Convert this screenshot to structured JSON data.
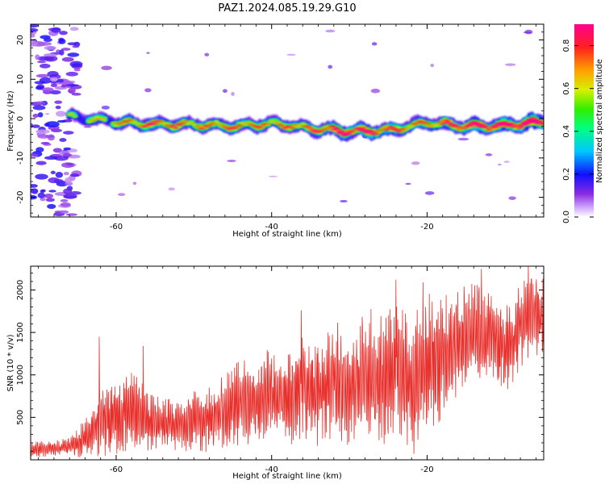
{
  "title": "PAZ1.2024.085.19.29.G10",
  "chart_data": [
    {
      "type": "heatmap",
      "xlabel": "Height of straight line (km)",
      "ylabel": "Frequency (Hz)",
      "xlim": [
        -71,
        -5
      ],
      "ylim": [
        -25,
        24
      ],
      "xticks": [
        -60,
        -40,
        -20
      ],
      "yticks": [
        -20,
        -10,
        0,
        10,
        20
      ],
      "colorbar": {
        "label": "Normalized spectral amplitude",
        "range": [
          0,
          0.9
        ],
        "ticks": [
          0.0,
          0.2,
          0.4,
          0.6,
          0.8
        ],
        "colormap": "rainbow (white-purple-blue-cyan-green-yellow-red-magenta)"
      },
      "ridge": {
        "description": "main spectral ridge",
        "x": [
          -66,
          -60,
          -55,
          -50,
          -45,
          -40,
          -35,
          -30,
          -25,
          -20,
          -15,
          -10,
          -5
        ],
        "frequency": [
          0.5,
          -0.8,
          -1.5,
          -1.5,
          -2.0,
          -1.2,
          -2.5,
          -3.2,
          -3.0,
          -1.0,
          -2.0,
          -1.8,
          -0.8
        ],
        "amplitude": [
          0.35,
          0.45,
          0.6,
          0.5,
          0.55,
          0.5,
          0.55,
          0.75,
          0.6,
          0.5,
          0.7,
          0.75,
          0.85
        ]
      },
      "noise_region": {
        "x": [
          -71,
          -65
        ],
        "frequency": [
          -25,
          24
        ],
        "amplitude": [
          0.05,
          0.2
        ]
      }
    },
    {
      "type": "line",
      "xlabel": "Height of straight line (km)",
      "ylabel": "SNR (10 * v/v)",
      "xlim": [
        -71,
        -5
      ],
      "ylim": [
        0,
        2280
      ],
      "xticks": [
        -60,
        -40,
        -20
      ],
      "yticks": [
        500,
        1000,
        1500,
        2000
      ],
      "color": "#e8312d",
      "envelope": {
        "x": [
          -71,
          -68,
          -66,
          -64,
          -62,
          -60,
          -58,
          -56,
          -54,
          -52,
          -50,
          -48,
          -46,
          -44,
          -42,
          -40,
          -38,
          -36,
          -34,
          -32,
          -30,
          -28,
          -26,
          -24,
          -22,
          -20,
          -18,
          -16,
          -14,
          -12,
          -10,
          -8,
          -6,
          -5
        ],
        "mean": [
          120,
          130,
          160,
          250,
          430,
          520,
          560,
          470,
          420,
          400,
          450,
          480,
          560,
          700,
          620,
          800,
          700,
          830,
          850,
          900,
          830,
          1000,
          950,
          1050,
          900,
          1100,
          1250,
          1350,
          1500,
          1450,
          1250,
          1600,
          1700,
          1650
        ],
        "amp": [
          90,
          90,
          100,
          220,
          420,
          450,
          450,
          350,
          300,
          280,
          330,
          360,
          420,
          480,
          450,
          550,
          500,
          600,
          650,
          700,
          650,
          750,
          800,
          850,
          800,
          850,
          700,
          650,
          600,
          550,
          500,
          500,
          450,
          450
        ]
      },
      "peaks": [
        {
          "x": -62.2,
          "y": 1450
        },
        {
          "x": -56.5,
          "y": 1340
        },
        {
          "x": -36.2,
          "y": 1760
        },
        {
          "x": -24.0,
          "y": 2120
        },
        {
          "x": -20.5,
          "y": 2090
        },
        {
          "x": -13.0,
          "y": 2250
        },
        {
          "x": -7.0,
          "y": 2290
        }
      ]
    }
  ]
}
